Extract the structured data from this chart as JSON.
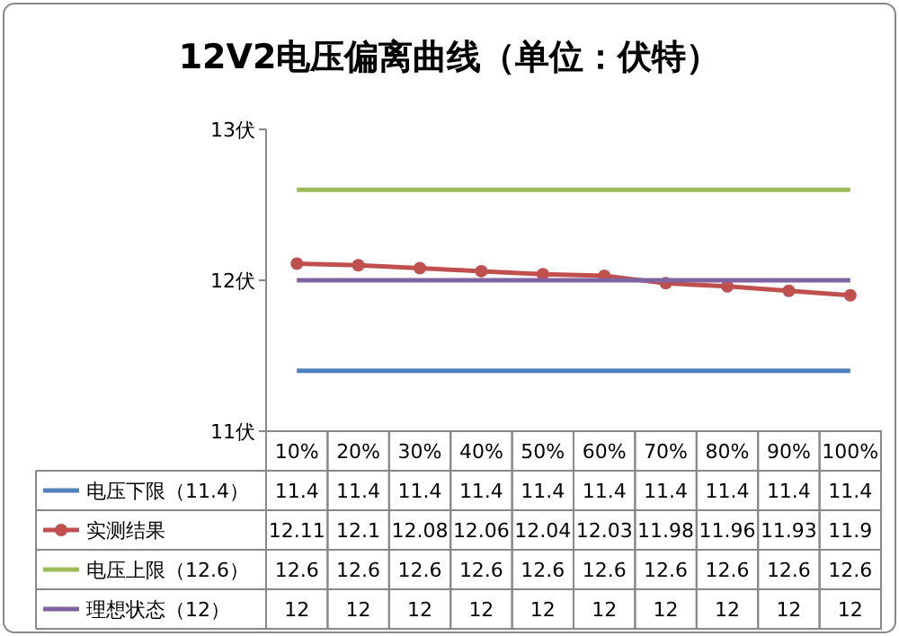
{
  "chart_data": {
    "type": "line",
    "title": "12V2电压偏离曲线（单位：伏特）",
    "categories": [
      "10%",
      "20%",
      "30%",
      "40%",
      "50%",
      "60%",
      "70%",
      "80%",
      "90%",
      "100%"
    ],
    "series": [
      {
        "name": "电压下限（11.4）",
        "color": "#4f81bd",
        "marker": "none",
        "values": [
          11.4,
          11.4,
          11.4,
          11.4,
          11.4,
          11.4,
          11.4,
          11.4,
          11.4,
          11.4
        ]
      },
      {
        "name": "实测结果",
        "color": "#c0504d",
        "marker": "circle",
        "values": [
          12.11,
          12.1,
          12.08,
          12.06,
          12.04,
          12.03,
          11.98,
          11.96,
          11.93,
          11.9
        ]
      },
      {
        "name": "电压上限（12.6）",
        "color": "#9bbb59",
        "marker": "none",
        "values": [
          12.6,
          12.6,
          12.6,
          12.6,
          12.6,
          12.6,
          12.6,
          12.6,
          12.6,
          12.6
        ]
      },
      {
        "name": "理想状态（12）",
        "color": "#8064a2",
        "marker": "none",
        "values": [
          12,
          12,
          12,
          12,
          12,
          12,
          12,
          12,
          12,
          12
        ]
      }
    ],
    "ylim": [
      11,
      13
    ],
    "yticks": [
      {
        "value": 11,
        "label": "11伏"
      },
      {
        "value": 12,
        "label": "12伏"
      },
      {
        "value": 13,
        "label": "13伏"
      }
    ],
    "data_labels": true,
    "legend": "bottom",
    "line_style": "solid",
    "grid": false
  }
}
